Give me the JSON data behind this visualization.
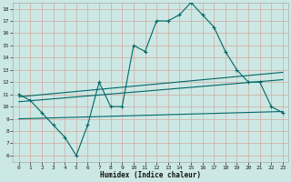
{
  "xlabel": "Humidex (Indice chaleur)",
  "xlim": [
    -0.5,
    23.5
  ],
  "ylim": [
    5.5,
    18.5
  ],
  "yticks": [
    6,
    7,
    8,
    9,
    10,
    11,
    12,
    13,
    14,
    15,
    16,
    17,
    18
  ],
  "xticks": [
    0,
    1,
    2,
    3,
    4,
    5,
    6,
    7,
    8,
    9,
    10,
    11,
    12,
    13,
    14,
    15,
    16,
    17,
    18,
    19,
    20,
    21,
    22,
    23
  ],
  "bg_color": "#cce8e4",
  "grid_major_color": "#b0d8d0",
  "grid_minor_color": "#daf0ec",
  "line_color": "#006868",
  "line1_x": [
    0,
    1,
    2,
    3,
    4,
    5,
    6,
    7,
    8,
    9,
    10,
    11,
    12,
    13,
    14,
    15,
    16,
    17,
    18,
    19,
    20,
    21,
    22,
    23
  ],
  "line1_y": [
    11,
    10.5,
    9.5,
    8.5,
    7.5,
    6,
    8.5,
    12,
    10,
    10,
    15,
    14.5,
    17,
    17,
    17.5,
    18.5,
    17.5,
    16.5,
    14.5,
    13,
    12,
    12,
    10,
    9.5
  ],
  "line2_x": [
    0,
    23
  ],
  "line2_y": [
    10.8,
    12.8
  ],
  "line3_x": [
    0,
    23
  ],
  "line3_y": [
    10.4,
    12.2
  ],
  "line4_x": [
    0,
    23
  ],
  "line4_y": [
    9.0,
    9.6
  ]
}
